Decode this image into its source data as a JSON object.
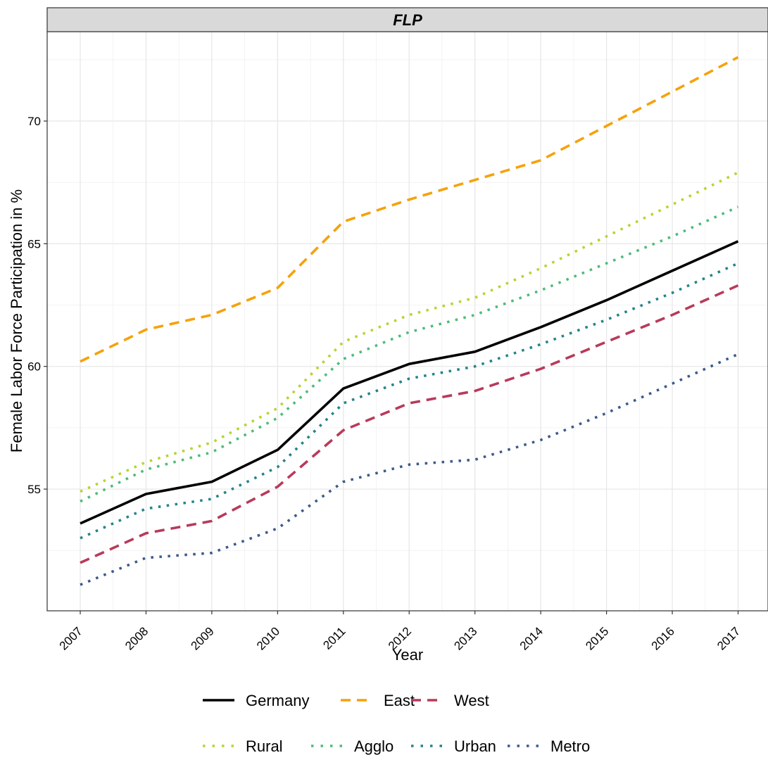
{
  "chart_data": {
    "type": "line",
    "facet_label": "FLP",
    "xlabel": "Year",
    "ylabel": "Female Labor Force Participation in %",
    "x": [
      2007,
      2008,
      2009,
      2010,
      2011,
      2012,
      2013,
      2014,
      2015,
      2016,
      2017
    ],
    "ylim": [
      50.2,
      73.8
    ],
    "yticks": [
      55,
      60,
      65,
      70
    ],
    "grid": true,
    "legend_position": "bottom",
    "series": [
      {
        "name": "Germany",
        "linetype": "solid",
        "color": "#000000",
        "values": [
          53.6,
          54.8,
          55.3,
          56.6,
          59.1,
          60.1,
          60.6,
          61.6,
          62.7,
          63.9,
          65.1
        ]
      },
      {
        "name": "East",
        "linetype": "dashed",
        "color": "#F5A20B",
        "values": [
          60.2,
          61.5,
          62.1,
          63.2,
          65.9,
          66.8,
          67.6,
          68.4,
          69.8,
          71.2,
          72.6
        ]
      },
      {
        "name": "West",
        "linetype": "dashed",
        "color": "#B83A5B",
        "values": [
          52.0,
          53.2,
          53.7,
          55.1,
          57.4,
          58.5,
          59.0,
          59.9,
          61.0,
          62.1,
          63.3
        ]
      },
      {
        "name": "Rural",
        "linetype": "dotted",
        "color": "#B8D430",
        "values": [
          54.9,
          56.1,
          56.9,
          58.3,
          61.0,
          62.1,
          62.8,
          64.0,
          65.3,
          66.6,
          67.9
        ]
      },
      {
        "name": "Agglo",
        "linetype": "dotted",
        "color": "#4FBB7A",
        "values": [
          54.5,
          55.8,
          56.5,
          57.9,
          60.3,
          61.4,
          62.1,
          63.1,
          64.2,
          65.3,
          66.5
        ]
      },
      {
        "name": "Urban",
        "linetype": "dotted",
        "color": "#24838A",
        "values": [
          53.0,
          54.2,
          54.6,
          55.9,
          58.5,
          59.5,
          60.0,
          60.9,
          61.9,
          63.0,
          64.2
        ]
      },
      {
        "name": "Metro",
        "linetype": "dotted",
        "color": "#3A5A8C",
        "values": [
          51.1,
          52.2,
          52.4,
          53.4,
          55.3,
          56.0,
          56.2,
          57.0,
          58.1,
          59.3,
          60.5
        ]
      }
    ]
  }
}
